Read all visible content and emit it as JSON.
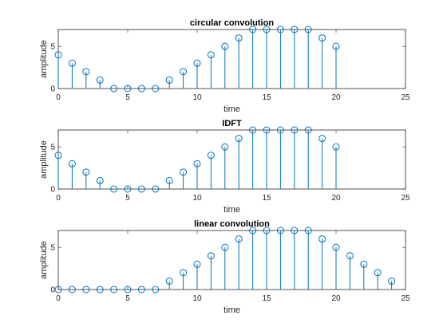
{
  "colors": {
    "series": "#0072BD",
    "axes": "#262626",
    "background": "#ffffff"
  },
  "chart_data": [
    {
      "type": "stem",
      "title": "circular convolution",
      "xlabel": "time",
      "ylabel": "amplitude",
      "xlim": [
        0,
        25
      ],
      "ylim": [
        0,
        7
      ],
      "xticks": [
        0,
        5,
        10,
        15,
        20,
        25
      ],
      "yticks": [
        0,
        5
      ],
      "x": [
        0,
        1,
        2,
        3,
        4,
        5,
        6,
        7,
        8,
        9,
        10,
        11,
        12,
        13,
        14,
        15,
        16,
        17,
        18,
        19,
        20
      ],
      "values": [
        4,
        3,
        2,
        1,
        0,
        0,
        0,
        0,
        1,
        2,
        3,
        4,
        5,
        6,
        7,
        7,
        7,
        7,
        7,
        6,
        5
      ],
      "grid": false
    },
    {
      "type": "stem",
      "title": "IDFT",
      "xlabel": "time",
      "ylabel": "amplitude",
      "xlim": [
        0,
        25
      ],
      "ylim": [
        0,
        7
      ],
      "xticks": [
        0,
        5,
        10,
        15,
        20,
        25
      ],
      "yticks": [
        0,
        5
      ],
      "x": [
        0,
        1,
        2,
        3,
        4,
        5,
        6,
        7,
        8,
        9,
        10,
        11,
        12,
        13,
        14,
        15,
        16,
        17,
        18,
        19,
        20
      ],
      "values": [
        4,
        3,
        2,
        1,
        0,
        0,
        0,
        0,
        1,
        2,
        3,
        4,
        5,
        6,
        7,
        7,
        7,
        7,
        7,
        6,
        5
      ],
      "grid": false
    },
    {
      "type": "stem",
      "title": "linear convolution",
      "xlabel": "time",
      "ylabel": "amplitude",
      "xlim": [
        0,
        25
      ],
      "ylim": [
        0,
        7
      ],
      "xticks": [
        0,
        5,
        10,
        15,
        20,
        25
      ],
      "yticks": [
        0,
        5
      ],
      "x": [
        0,
        1,
        2,
        3,
        4,
        5,
        6,
        7,
        8,
        9,
        10,
        11,
        12,
        13,
        14,
        15,
        16,
        17,
        18,
        19,
        20,
        21,
        22,
        23,
        24
      ],
      "values": [
        0,
        0,
        0,
        0,
        0,
        0,
        0,
        0,
        1,
        2,
        3,
        4,
        5,
        6,
        7,
        7,
        7,
        7,
        7,
        6,
        5,
        4,
        3,
        2,
        1
      ],
      "grid": false
    }
  ]
}
